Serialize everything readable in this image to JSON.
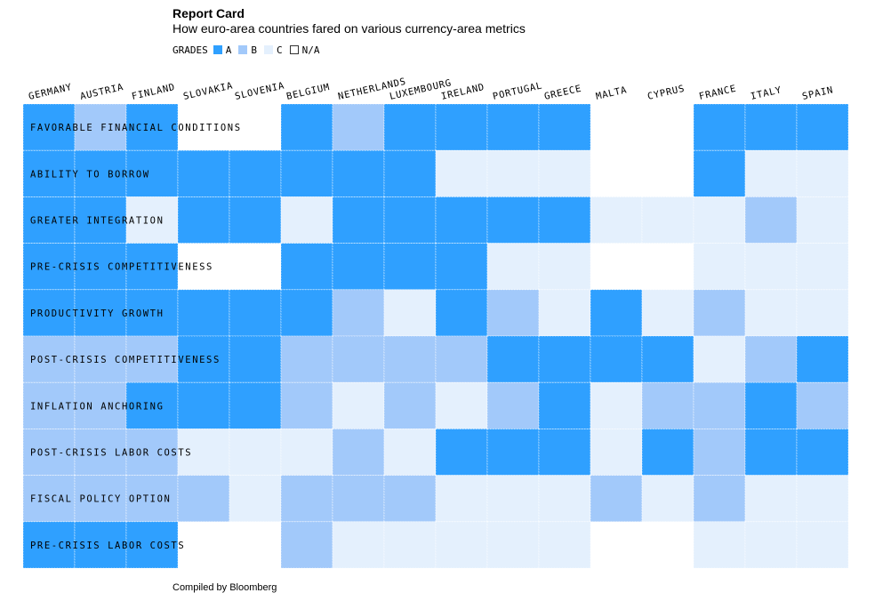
{
  "title": "Report Card",
  "subtitle": "How euro-area countries fared on various currency-area metrics",
  "legend": {
    "label": "GRADES",
    "items": [
      {
        "grade": "A",
        "label": "A",
        "color": "#2fa0ff"
      },
      {
        "grade": "B",
        "label": "B",
        "color": "#a2c9fa"
      },
      {
        "grade": "C",
        "label": "C",
        "color": "#e4f0fd"
      },
      {
        "grade": "N",
        "label": "N/A",
        "color": "#ffffff"
      }
    ]
  },
  "footer": "Compiled by Bloomberg",
  "chart_data": {
    "type": "heatmap",
    "countries": [
      "GERMANY",
      "AUSTRIA",
      "FINLAND",
      "SLOVAKIA",
      "SLOVENIA",
      "BELGIUM",
      "NETHERLANDS",
      "LUXEMBOURG",
      "IRELAND",
      "PORTUGAL",
      "GREECE",
      "MALTA",
      "CYPRUS",
      "FRANCE",
      "ITALY",
      "SPAIN"
    ],
    "metrics": [
      "FAVORABLE FINANCIAL CONDITIONS",
      "ABILITY TO BORROW",
      "GREATER INTEGRATION",
      "PRE-CRISIS COMPETITIVENESS",
      "PRODUCTIVITY GROWTH",
      "POST-CRISIS COMPETITIVENESS",
      "INFLATION ANCHORING",
      "POST-CRISIS LABOR COSTS",
      "FISCAL POLICY OPTION",
      "PRE-CRISIS LABOR COSTS"
    ],
    "grades": [
      [
        "A",
        "B",
        "A",
        "N",
        "N",
        "A",
        "B",
        "A",
        "A",
        "A",
        "A",
        "N",
        "N",
        "A",
        "A",
        "A"
      ],
      [
        "A",
        "A",
        "A",
        "A",
        "A",
        "A",
        "A",
        "A",
        "C",
        "C",
        "C",
        "N",
        "N",
        "A",
        "C",
        "C"
      ],
      [
        "A",
        "A",
        "C",
        "A",
        "A",
        "C",
        "A",
        "A",
        "A",
        "A",
        "A",
        "C",
        "C",
        "C",
        "B",
        "C"
      ],
      [
        "A",
        "A",
        "A",
        "N",
        "N",
        "A",
        "A",
        "A",
        "A",
        "C",
        "C",
        "N",
        "N",
        "C",
        "C",
        "C"
      ],
      [
        "A",
        "A",
        "A",
        "A",
        "A",
        "A",
        "B",
        "C",
        "A",
        "B",
        "C",
        "A",
        "C",
        "B",
        "C",
        "C"
      ],
      [
        "B",
        "B",
        "B",
        "A",
        "A",
        "B",
        "B",
        "B",
        "B",
        "A",
        "A",
        "A",
        "A",
        "C",
        "B",
        "A"
      ],
      [
        "B",
        "B",
        "A",
        "A",
        "A",
        "B",
        "C",
        "B",
        "C",
        "B",
        "A",
        "C",
        "B",
        "B",
        "A",
        "B"
      ],
      [
        "B",
        "B",
        "B",
        "C",
        "C",
        "C",
        "B",
        "C",
        "A",
        "A",
        "A",
        "C",
        "A",
        "B",
        "A",
        "A"
      ],
      [
        "B",
        "B",
        "B",
        "B",
        "C",
        "B",
        "B",
        "B",
        "C",
        "C",
        "C",
        "B",
        "C",
        "B",
        "C",
        "C"
      ],
      [
        "A",
        "A",
        "A",
        "N",
        "N",
        "B",
        "C",
        "C",
        "C",
        "C",
        "C",
        "N",
        "N",
        "C",
        "C",
        "C"
      ]
    ]
  }
}
